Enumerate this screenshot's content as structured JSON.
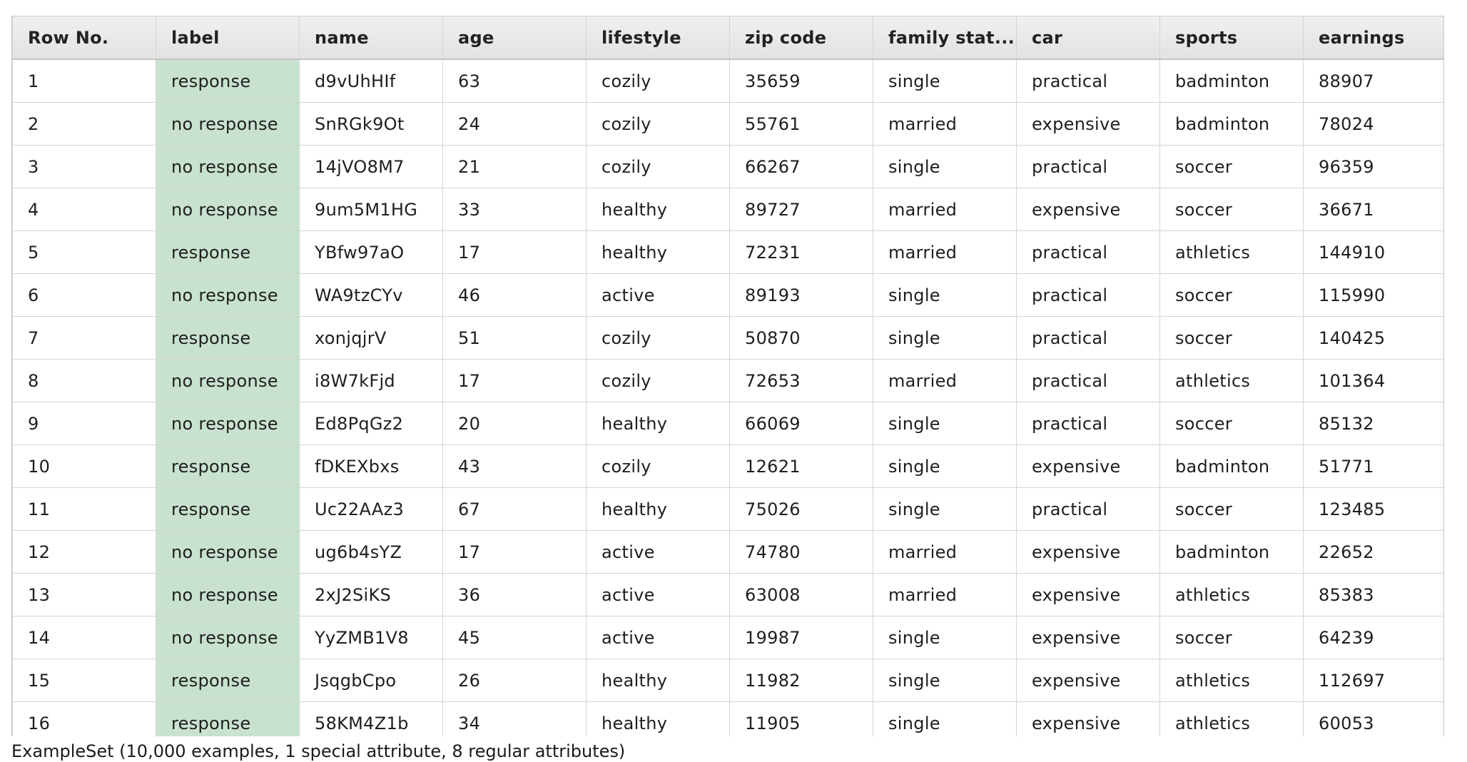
{
  "table": {
    "columns": [
      "Row No.",
      "label",
      "name",
      "age",
      "lifestyle",
      "zip code",
      "family stat...",
      "car",
      "sports",
      "earnings"
    ],
    "rows": [
      [
        "1",
        "response",
        "d9vUhHIf",
        "63",
        "cozily",
        "35659",
        "single",
        "practical",
        "badminton",
        "88907"
      ],
      [
        "2",
        "no response",
        "SnRGk9Ot",
        "24",
        "cozily",
        "55761",
        "married",
        "expensive",
        "badminton",
        "78024"
      ],
      [
        "3",
        "no response",
        "14jVO8M7",
        "21",
        "cozily",
        "66267",
        "single",
        "practical",
        "soccer",
        "96359"
      ],
      [
        "4",
        "no response",
        "9um5M1HG",
        "33",
        "healthy",
        "89727",
        "married",
        "expensive",
        "soccer",
        "36671"
      ],
      [
        "5",
        "response",
        "YBfw97aO",
        "17",
        "healthy",
        "72231",
        "married",
        "practical",
        "athletics",
        "144910"
      ],
      [
        "6",
        "no response",
        "WA9tzCYv",
        "46",
        "active",
        "89193",
        "single",
        "practical",
        "soccer",
        "115990"
      ],
      [
        "7",
        "response",
        "xonjqjrV",
        "51",
        "cozily",
        "50870",
        "single",
        "practical",
        "soccer",
        "140425"
      ],
      [
        "8",
        "no response",
        "i8W7kFjd",
        "17",
        "cozily",
        "72653",
        "married",
        "practical",
        "athletics",
        "101364"
      ],
      [
        "9",
        "no response",
        "Ed8PqGz2",
        "20",
        "healthy",
        "66069",
        "single",
        "practical",
        "soccer",
        "85132"
      ],
      [
        "10",
        "response",
        "fDKEXbxs",
        "43",
        "cozily",
        "12621",
        "single",
        "expensive",
        "badminton",
        "51771"
      ],
      [
        "11",
        "response",
        "Uc22AAz3",
        "67",
        "healthy",
        "75026",
        "single",
        "practical",
        "soccer",
        "123485"
      ],
      [
        "12",
        "no response",
        "ug6b4sYZ",
        "17",
        "active",
        "74780",
        "married",
        "expensive",
        "badminton",
        "22652"
      ],
      [
        "13",
        "no response",
        "2xJ2SiKS",
        "36",
        "active",
        "63008",
        "married",
        "expensive",
        "athletics",
        "85383"
      ],
      [
        "14",
        "no response",
        "YyZMB1V8",
        "45",
        "active",
        "19987",
        "single",
        "expensive",
        "soccer",
        "64239"
      ],
      [
        "15",
        "response",
        "JsqgbCpo",
        "26",
        "healthy",
        "11982",
        "single",
        "expensive",
        "athletics",
        "112697"
      ],
      [
        "16",
        "response",
        "58KM4Z1b",
        "34",
        "healthy",
        "11905",
        "single",
        "expensive",
        "athletics",
        "60053"
      ]
    ]
  },
  "status": {
    "text": "ExampleSet (10,000 examples, 1 special attribute, 8 regular attributes)"
  },
  "colors": {
    "label_column_bg": "#c8e2cf",
    "header_bg": "#e8e8e8",
    "grid_line": "#d4d4d4"
  }
}
